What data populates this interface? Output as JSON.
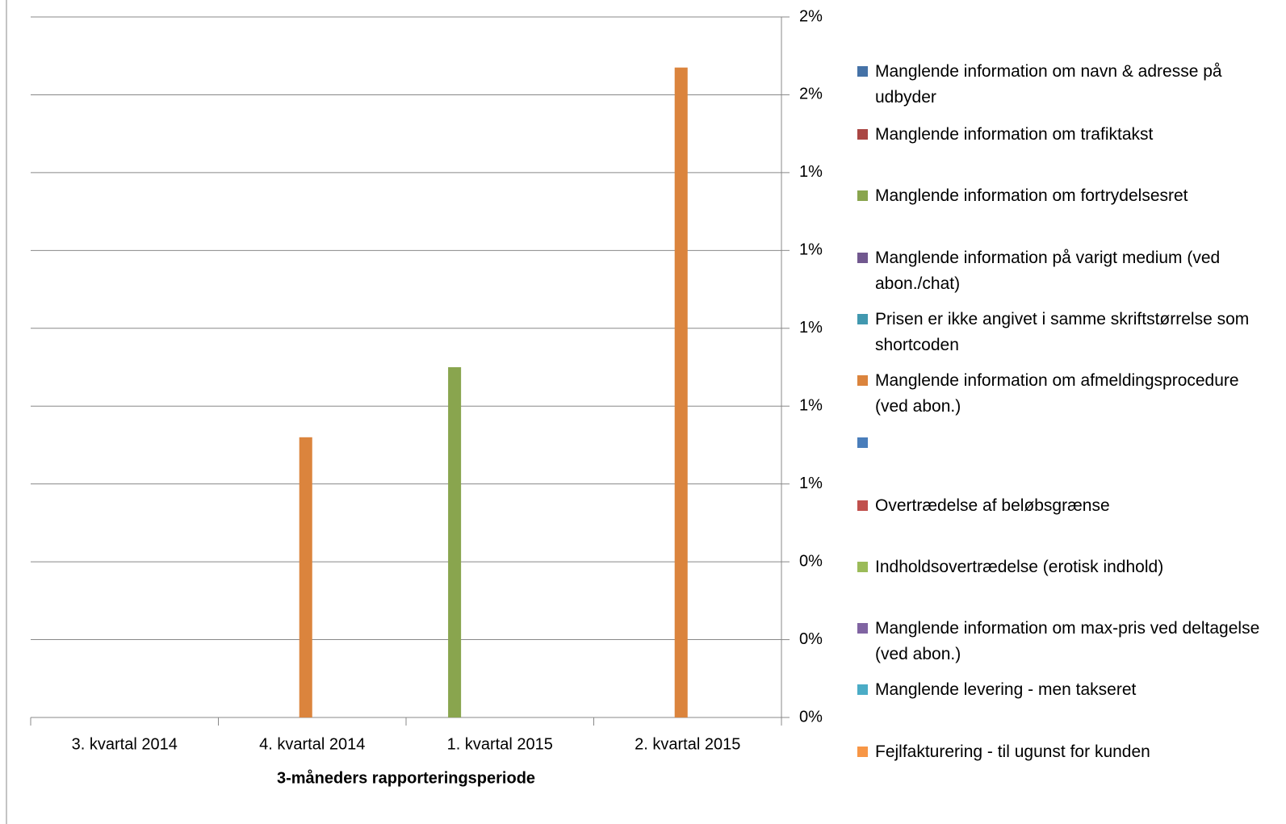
{
  "chart_data": {
    "type": "bar",
    "x_label": "3-måneders rapporteringsperiode",
    "categories": [
      "3. kvartal 2014",
      "4. kvartal 2014",
      "1. kvartal 2015",
      "2. kvartal 2015"
    ],
    "series": [
      {
        "name": "Manglende information om navn & adresse på udbyder",
        "color": "#4572a7",
        "values": [
          0,
          0,
          0,
          0
        ]
      },
      {
        "name": "Manglende information om trafiktakst",
        "color": "#aa4643",
        "values": [
          0,
          0,
          0,
          0
        ]
      },
      {
        "name": "Manglende information om fortrydelsesret",
        "color": "#89a54e",
        "values": [
          0,
          0,
          0.9,
          0
        ]
      },
      {
        "name": "Manglende information på varigt medium (ved abon./chat)",
        "color": "#71588f",
        "values": [
          0,
          0,
          0,
          0
        ]
      },
      {
        "name": "Prisen er ikke angivet i samme skriftstørrelse som shortcoden",
        "color": "#4198af",
        "values": [
          0,
          0,
          0,
          0
        ]
      },
      {
        "name": "Manglende information om afmeldingsprocedure (ved abon.)",
        "color": "#db843d",
        "values": [
          0,
          0.72,
          0,
          1.67
        ]
      },
      {
        "name": null,
        "color": "#4a7ebb",
        "values": [
          0,
          0,
          0,
          0
        ]
      },
      {
        "name": "Overtrædelse af beløbsgrænse",
        "color": "#c0504d",
        "values": [
          0,
          0,
          0,
          0
        ]
      },
      {
        "name": "Indholdsovertrædelse (erotisk indhold)",
        "color": "#9bbb59",
        "values": [
          0,
          0,
          0,
          0
        ]
      },
      {
        "name": "Manglende information om max-pris ved deltagelse (ved abon.)",
        "color": "#8064a2",
        "values": [
          0,
          0,
          0,
          0
        ]
      },
      {
        "name": "Manglende levering - men takseret",
        "color": "#4bacc6",
        "values": [
          0,
          0,
          0,
          0
        ]
      },
      {
        "name": "Fejlfakturering - til ugunst for kunden",
        "color": "#f79646",
        "values": [
          0,
          0,
          0,
          0
        ]
      }
    ],
    "ylim": [
      0,
      1.8
    ],
    "yticks": [
      {
        "value": 0,
        "label": "0%"
      },
      {
        "value": 0.2,
        "label": "0%"
      },
      {
        "value": 0.4,
        "label": "0%"
      },
      {
        "value": 0.6,
        "label": "1%"
      },
      {
        "value": 0.8,
        "label": "1%"
      },
      {
        "value": 1.0,
        "label": "1%"
      },
      {
        "value": 1.2,
        "label": "1%"
      },
      {
        "value": 1.4,
        "label": "1%"
      },
      {
        "value": 1.6,
        "label": "2%"
      },
      {
        "value": 1.8,
        "label": "2%"
      }
    ],
    "y_axis_side": "right",
    "grid": true
  }
}
